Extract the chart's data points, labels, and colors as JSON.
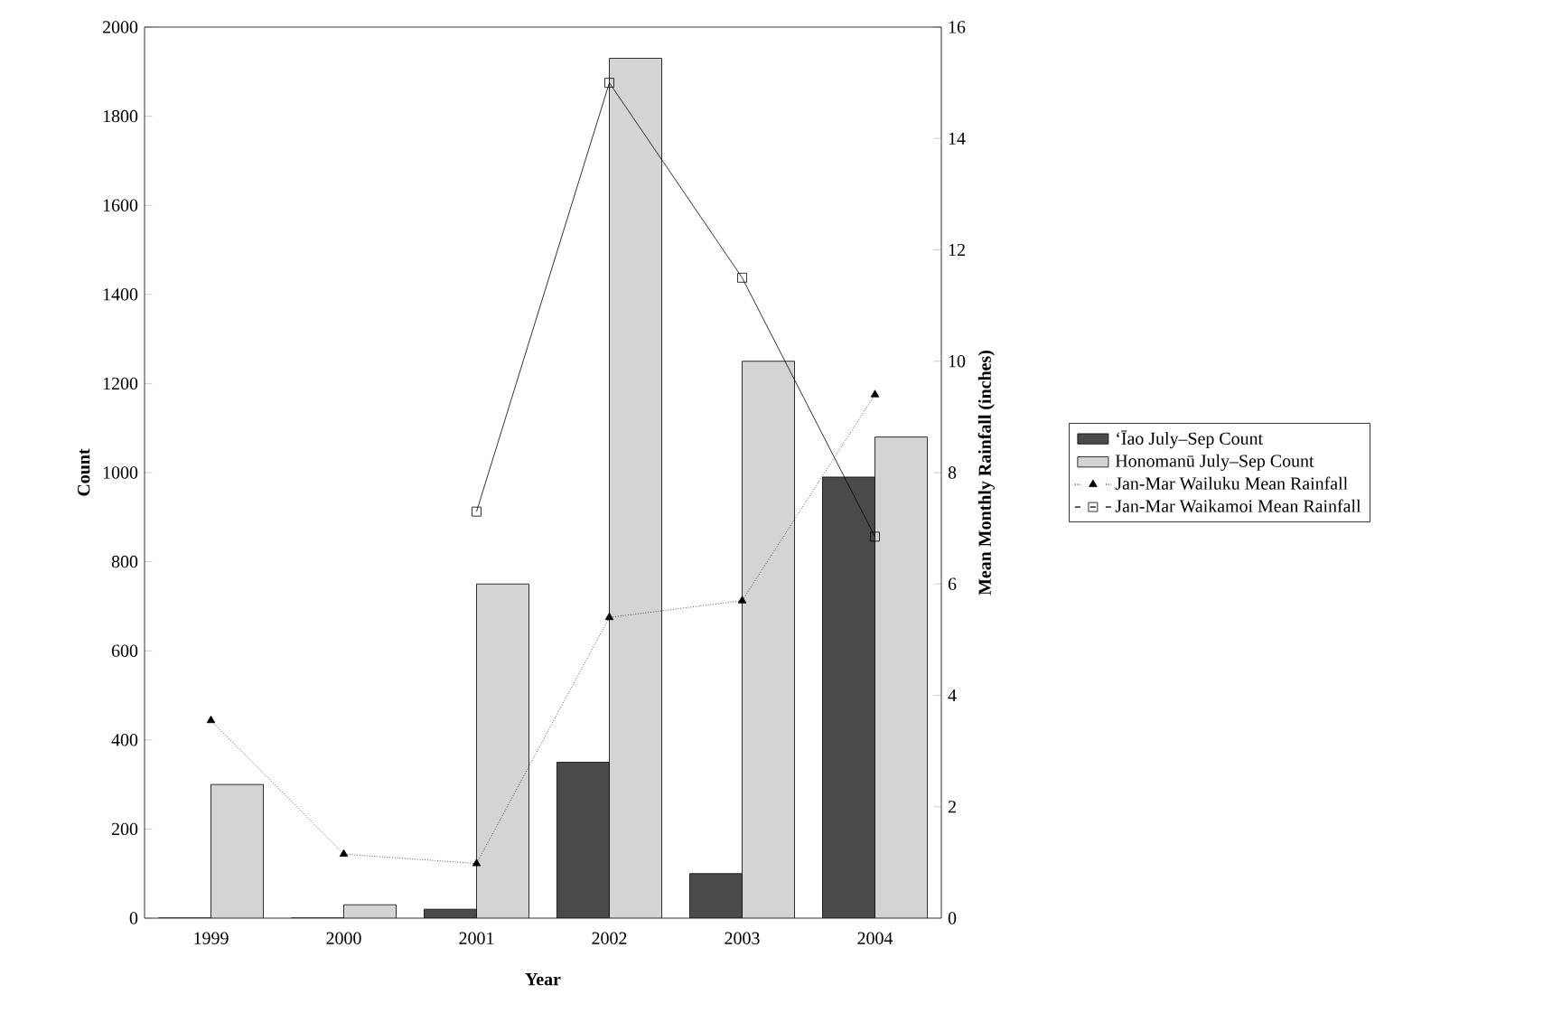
{
  "chart_data": {
    "type": "bar",
    "xlabel": "Year",
    "ylabel": "Count",
    "y2label": "Mean Monthly Rainfall (inches)",
    "categories": [
      "1999",
      "2000",
      "2001",
      "2002",
      "2003",
      "2004"
    ],
    "series": [
      {
        "name": "ʻĪao July–Sep Count",
        "color": "#4a4a4a",
        "values": [
          0,
          0,
          20,
          350,
          100,
          990
        ]
      },
      {
        "name": "Honomanū July–Sep Count",
        "color": "#d4d4d4",
        "values": [
          300,
          30,
          750,
          1930,
          1250,
          1080
        ]
      },
      {
        "name": "Jan-Mar Wailuku Mean Rainfall",
        "type": "line",
        "axis": "y2",
        "color": "#000000",
        "marker": "triangle",
        "line_style": "dotted",
        "values": [
          3.55,
          1.15,
          0.98,
          5.4,
          5.7,
          9.4
        ]
      },
      {
        "name": "Jan-Mar Waikamoi Mean Rainfall",
        "type": "line",
        "axis": "y2",
        "color": "#000000",
        "marker": "square",
        "line_style": "solid",
        "values": [
          null,
          null,
          7.3,
          15.0,
          11.5,
          6.85
        ]
      }
    ],
    "ylim": [
      0,
      2000
    ],
    "yticks": [
      0,
      200,
      400,
      600,
      800,
      1000,
      1200,
      1400,
      1600,
      1800,
      2000
    ],
    "y2lim": [
      0,
      16
    ],
    "y2ticks": [
      0,
      2,
      4,
      6,
      8,
      10,
      12,
      14,
      16
    ],
    "legend": "right",
    "grid": false
  }
}
